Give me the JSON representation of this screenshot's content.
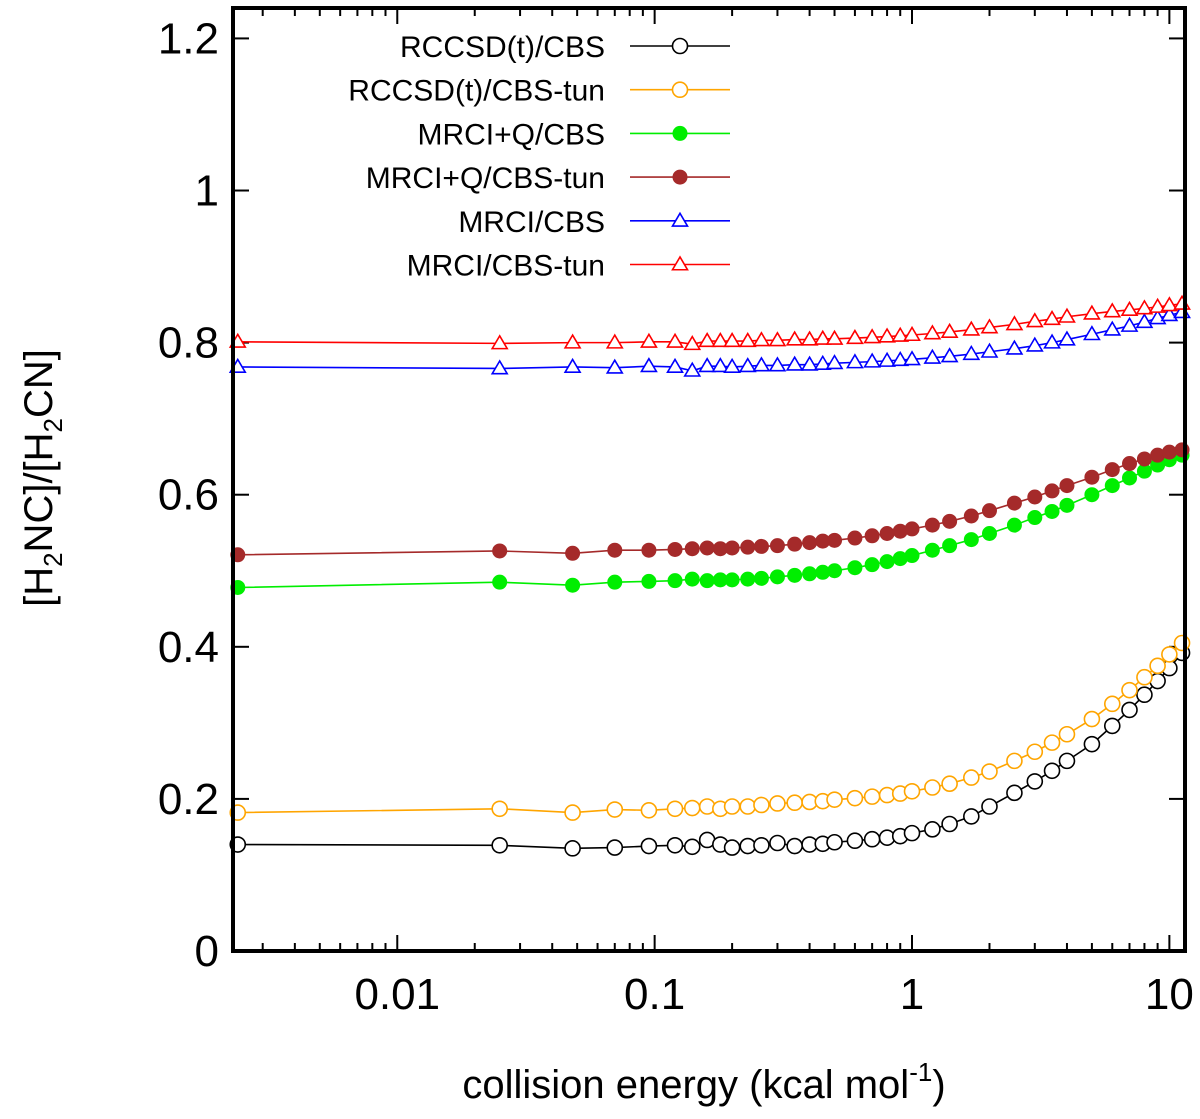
{
  "chart_data": {
    "type": "scatter",
    "x_scale": "log",
    "xlim": [
      0.0023,
      11.5
    ],
    "ylim": [
      0,
      1.24
    ],
    "x_ticks": [
      {
        "value": 0.01,
        "label": "0.01"
      },
      {
        "value": 0.1,
        "label": "0.1"
      },
      {
        "value": 1,
        "label": "1"
      },
      {
        "value": 10,
        "label": "10"
      }
    ],
    "y_ticks": [
      {
        "value": 0,
        "label": "0"
      },
      {
        "value": 0.2,
        "label": "0.2"
      },
      {
        "value": 0.4,
        "label": "0.4"
      },
      {
        "value": 0.6,
        "label": "0.6"
      },
      {
        "value": 0.8,
        "label": "0.8"
      },
      {
        "value": 1.0,
        "label": "1"
      },
      {
        "value": 1.2,
        "label": "1.2"
      }
    ],
    "xlabel": {
      "main": "collision energy (kcal mol",
      "sup": "-1",
      "end": ")"
    },
    "ylabel": {
      "parts": [
        {
          "t": "[H",
          "sub": false
        },
        {
          "t": "2",
          "sub": true
        },
        {
          "t": "NC]/[H",
          "sub": false
        },
        {
          "t": "2",
          "sub": true
        },
        {
          "t": "CN]",
          "sub": false
        }
      ]
    },
    "legend_position": "top-right",
    "series": [
      {
        "name": "RCCSD(t)/CBS",
        "color": "#000000",
        "marker": "circle-open",
        "points": [
          [
            0.0024,
            0.14
          ],
          [
            0.025,
            0.139
          ],
          [
            0.048,
            0.135
          ],
          [
            0.07,
            0.136
          ],
          [
            0.095,
            0.138
          ],
          [
            0.12,
            0.139
          ],
          [
            0.14,
            0.137
          ],
          [
            0.16,
            0.146
          ],
          [
            0.18,
            0.14
          ],
          [
            0.2,
            0.136
          ],
          [
            0.23,
            0.138
          ],
          [
            0.26,
            0.139
          ],
          [
            0.3,
            0.142
          ],
          [
            0.35,
            0.138
          ],
          [
            0.4,
            0.14
          ],
          [
            0.45,
            0.141
          ],
          [
            0.5,
            0.143
          ],
          [
            0.6,
            0.145
          ],
          [
            0.7,
            0.147
          ],
          [
            0.8,
            0.149
          ],
          [
            0.9,
            0.151
          ],
          [
            1.0,
            0.155
          ],
          [
            1.2,
            0.16
          ],
          [
            1.4,
            0.167
          ],
          [
            1.7,
            0.177
          ],
          [
            2.0,
            0.19
          ],
          [
            2.5,
            0.208
          ],
          [
            3.0,
            0.223
          ],
          [
            3.5,
            0.237
          ],
          [
            4.0,
            0.25
          ],
          [
            5.0,
            0.272
          ],
          [
            6.0,
            0.296
          ],
          [
            7.0,
            0.317
          ],
          [
            8.0,
            0.337
          ],
          [
            9.0,
            0.355
          ],
          [
            10.0,
            0.372
          ],
          [
            11.2,
            0.392
          ]
        ]
      },
      {
        "name": "RCCSD(t)/CBS-tun",
        "color": "#FFA500",
        "marker": "circle-open",
        "points": [
          [
            0.0024,
            0.182
          ],
          [
            0.025,
            0.187
          ],
          [
            0.048,
            0.182
          ],
          [
            0.07,
            0.186
          ],
          [
            0.095,
            0.185
          ],
          [
            0.12,
            0.187
          ],
          [
            0.14,
            0.188
          ],
          [
            0.16,
            0.19
          ],
          [
            0.18,
            0.187
          ],
          [
            0.2,
            0.19
          ],
          [
            0.23,
            0.19
          ],
          [
            0.26,
            0.192
          ],
          [
            0.3,
            0.194
          ],
          [
            0.35,
            0.195
          ],
          [
            0.4,
            0.196
          ],
          [
            0.45,
            0.197
          ],
          [
            0.5,
            0.199
          ],
          [
            0.6,
            0.201
          ],
          [
            0.7,
            0.203
          ],
          [
            0.8,
            0.205
          ],
          [
            0.9,
            0.207
          ],
          [
            1.0,
            0.21
          ],
          [
            1.2,
            0.215
          ],
          [
            1.4,
            0.22
          ],
          [
            1.7,
            0.228
          ],
          [
            2.0,
            0.236
          ],
          [
            2.5,
            0.25
          ],
          [
            3.0,
            0.262
          ],
          [
            3.5,
            0.274
          ],
          [
            4.0,
            0.285
          ],
          [
            5.0,
            0.305
          ],
          [
            6.0,
            0.325
          ],
          [
            7.0,
            0.343
          ],
          [
            8.0,
            0.36
          ],
          [
            9.0,
            0.375
          ],
          [
            10.0,
            0.39
          ],
          [
            11.2,
            0.405
          ]
        ]
      },
      {
        "name": "MRCI+Q/CBS",
        "color": "#00EE00",
        "marker": "circle-filled",
        "points": [
          [
            0.0024,
            0.478
          ],
          [
            0.025,
            0.485
          ],
          [
            0.048,
            0.481
          ],
          [
            0.07,
            0.485
          ],
          [
            0.095,
            0.486
          ],
          [
            0.12,
            0.487
          ],
          [
            0.14,
            0.489
          ],
          [
            0.16,
            0.487
          ],
          [
            0.18,
            0.488
          ],
          [
            0.2,
            0.488
          ],
          [
            0.23,
            0.489
          ],
          [
            0.26,
            0.49
          ],
          [
            0.3,
            0.492
          ],
          [
            0.35,
            0.494
          ],
          [
            0.4,
            0.496
          ],
          [
            0.45,
            0.498
          ],
          [
            0.5,
            0.5
          ],
          [
            0.6,
            0.504
          ],
          [
            0.7,
            0.508
          ],
          [
            0.8,
            0.512
          ],
          [
            0.9,
            0.516
          ],
          [
            1.0,
            0.52
          ],
          [
            1.2,
            0.527
          ],
          [
            1.4,
            0.533
          ],
          [
            1.7,
            0.541
          ],
          [
            2.0,
            0.549
          ],
          [
            2.5,
            0.56
          ],
          [
            3.0,
            0.57
          ],
          [
            3.5,
            0.578
          ],
          [
            4.0,
            0.586
          ],
          [
            5.0,
            0.6
          ],
          [
            6.0,
            0.612
          ],
          [
            7.0,
            0.622
          ],
          [
            8.0,
            0.631
          ],
          [
            9.0,
            0.639
          ],
          [
            10.0,
            0.646
          ],
          [
            11.2,
            0.652
          ]
        ]
      },
      {
        "name": "MRCI+Q/CBS-tun",
        "color": "#A52A2A",
        "marker": "circle-filled",
        "points": [
          [
            0.0024,
            0.521
          ],
          [
            0.025,
            0.526
          ],
          [
            0.048,
            0.523
          ],
          [
            0.07,
            0.527
          ],
          [
            0.095,
            0.527
          ],
          [
            0.12,
            0.528
          ],
          [
            0.14,
            0.529
          ],
          [
            0.16,
            0.53
          ],
          [
            0.18,
            0.529
          ],
          [
            0.2,
            0.53
          ],
          [
            0.23,
            0.531
          ],
          [
            0.26,
            0.532
          ],
          [
            0.3,
            0.533
          ],
          [
            0.35,
            0.535
          ],
          [
            0.4,
            0.537
          ],
          [
            0.45,
            0.539
          ],
          [
            0.5,
            0.54
          ],
          [
            0.6,
            0.543
          ],
          [
            0.7,
            0.546
          ],
          [
            0.8,
            0.549
          ],
          [
            0.9,
            0.552
          ],
          [
            1.0,
            0.555
          ],
          [
            1.2,
            0.56
          ],
          [
            1.4,
            0.565
          ],
          [
            1.7,
            0.572
          ],
          [
            2.0,
            0.579
          ],
          [
            2.5,
            0.589
          ],
          [
            3.0,
            0.597
          ],
          [
            3.5,
            0.605
          ],
          [
            4.0,
            0.612
          ],
          [
            5.0,
            0.623
          ],
          [
            6.0,
            0.633
          ],
          [
            7.0,
            0.641
          ],
          [
            8.0,
            0.647
          ],
          [
            9.0,
            0.652
          ],
          [
            10.0,
            0.656
          ],
          [
            11.2,
            0.659
          ]
        ]
      },
      {
        "name": "MRCI/CBS",
        "color": "#0000FF",
        "marker": "triangle-open",
        "points": [
          [
            0.0024,
            0.768
          ],
          [
            0.025,
            0.766
          ],
          [
            0.048,
            0.768
          ],
          [
            0.07,
            0.767
          ],
          [
            0.095,
            0.769
          ],
          [
            0.12,
            0.768
          ],
          [
            0.14,
            0.763
          ],
          [
            0.16,
            0.769
          ],
          [
            0.18,
            0.769
          ],
          [
            0.2,
            0.768
          ],
          [
            0.23,
            0.769
          ],
          [
            0.26,
            0.77
          ],
          [
            0.3,
            0.77
          ],
          [
            0.35,
            0.771
          ],
          [
            0.4,
            0.771
          ],
          [
            0.45,
            0.772
          ],
          [
            0.5,
            0.773
          ],
          [
            0.6,
            0.774
          ],
          [
            0.7,
            0.775
          ],
          [
            0.8,
            0.776
          ],
          [
            0.9,
            0.777
          ],
          [
            1.0,
            0.778
          ],
          [
            1.2,
            0.78
          ],
          [
            1.4,
            0.782
          ],
          [
            1.7,
            0.785
          ],
          [
            2.0,
            0.788
          ],
          [
            2.5,
            0.792
          ],
          [
            3.0,
            0.796
          ],
          [
            3.5,
            0.8
          ],
          [
            4.0,
            0.804
          ],
          [
            5.0,
            0.811
          ],
          [
            6.0,
            0.817
          ],
          [
            7.0,
            0.822
          ],
          [
            8.0,
            0.827
          ],
          [
            9.0,
            0.832
          ],
          [
            10.0,
            0.836
          ],
          [
            11.2,
            0.84
          ]
        ]
      },
      {
        "name": "MRCI/CBS-tun",
        "color": "#FF0000",
        "marker": "triangle-open",
        "points": [
          [
            0.0024,
            0.801
          ],
          [
            0.025,
            0.799
          ],
          [
            0.048,
            0.8
          ],
          [
            0.07,
            0.8
          ],
          [
            0.095,
            0.801
          ],
          [
            0.12,
            0.801
          ],
          [
            0.14,
            0.798
          ],
          [
            0.16,
            0.802
          ],
          [
            0.18,
            0.802
          ],
          [
            0.2,
            0.802
          ],
          [
            0.23,
            0.802
          ],
          [
            0.26,
            0.803
          ],
          [
            0.3,
            0.803
          ],
          [
            0.35,
            0.804
          ],
          [
            0.4,
            0.804
          ],
          [
            0.45,
            0.805
          ],
          [
            0.5,
            0.805
          ],
          [
            0.6,
            0.806
          ],
          [
            0.7,
            0.807
          ],
          [
            0.8,
            0.808
          ],
          [
            0.9,
            0.809
          ],
          [
            1.0,
            0.81
          ],
          [
            1.2,
            0.812
          ],
          [
            1.4,
            0.814
          ],
          [
            1.7,
            0.817
          ],
          [
            2.0,
            0.82
          ],
          [
            2.5,
            0.824
          ],
          [
            3.0,
            0.828
          ],
          [
            3.5,
            0.831
          ],
          [
            4.0,
            0.834
          ],
          [
            5.0,
            0.838
          ],
          [
            6.0,
            0.841
          ],
          [
            7.0,
            0.843
          ],
          [
            8.0,
            0.845
          ],
          [
            9.0,
            0.847
          ],
          [
            10.0,
            0.849
          ],
          [
            11.2,
            0.851
          ]
        ]
      }
    ]
  }
}
